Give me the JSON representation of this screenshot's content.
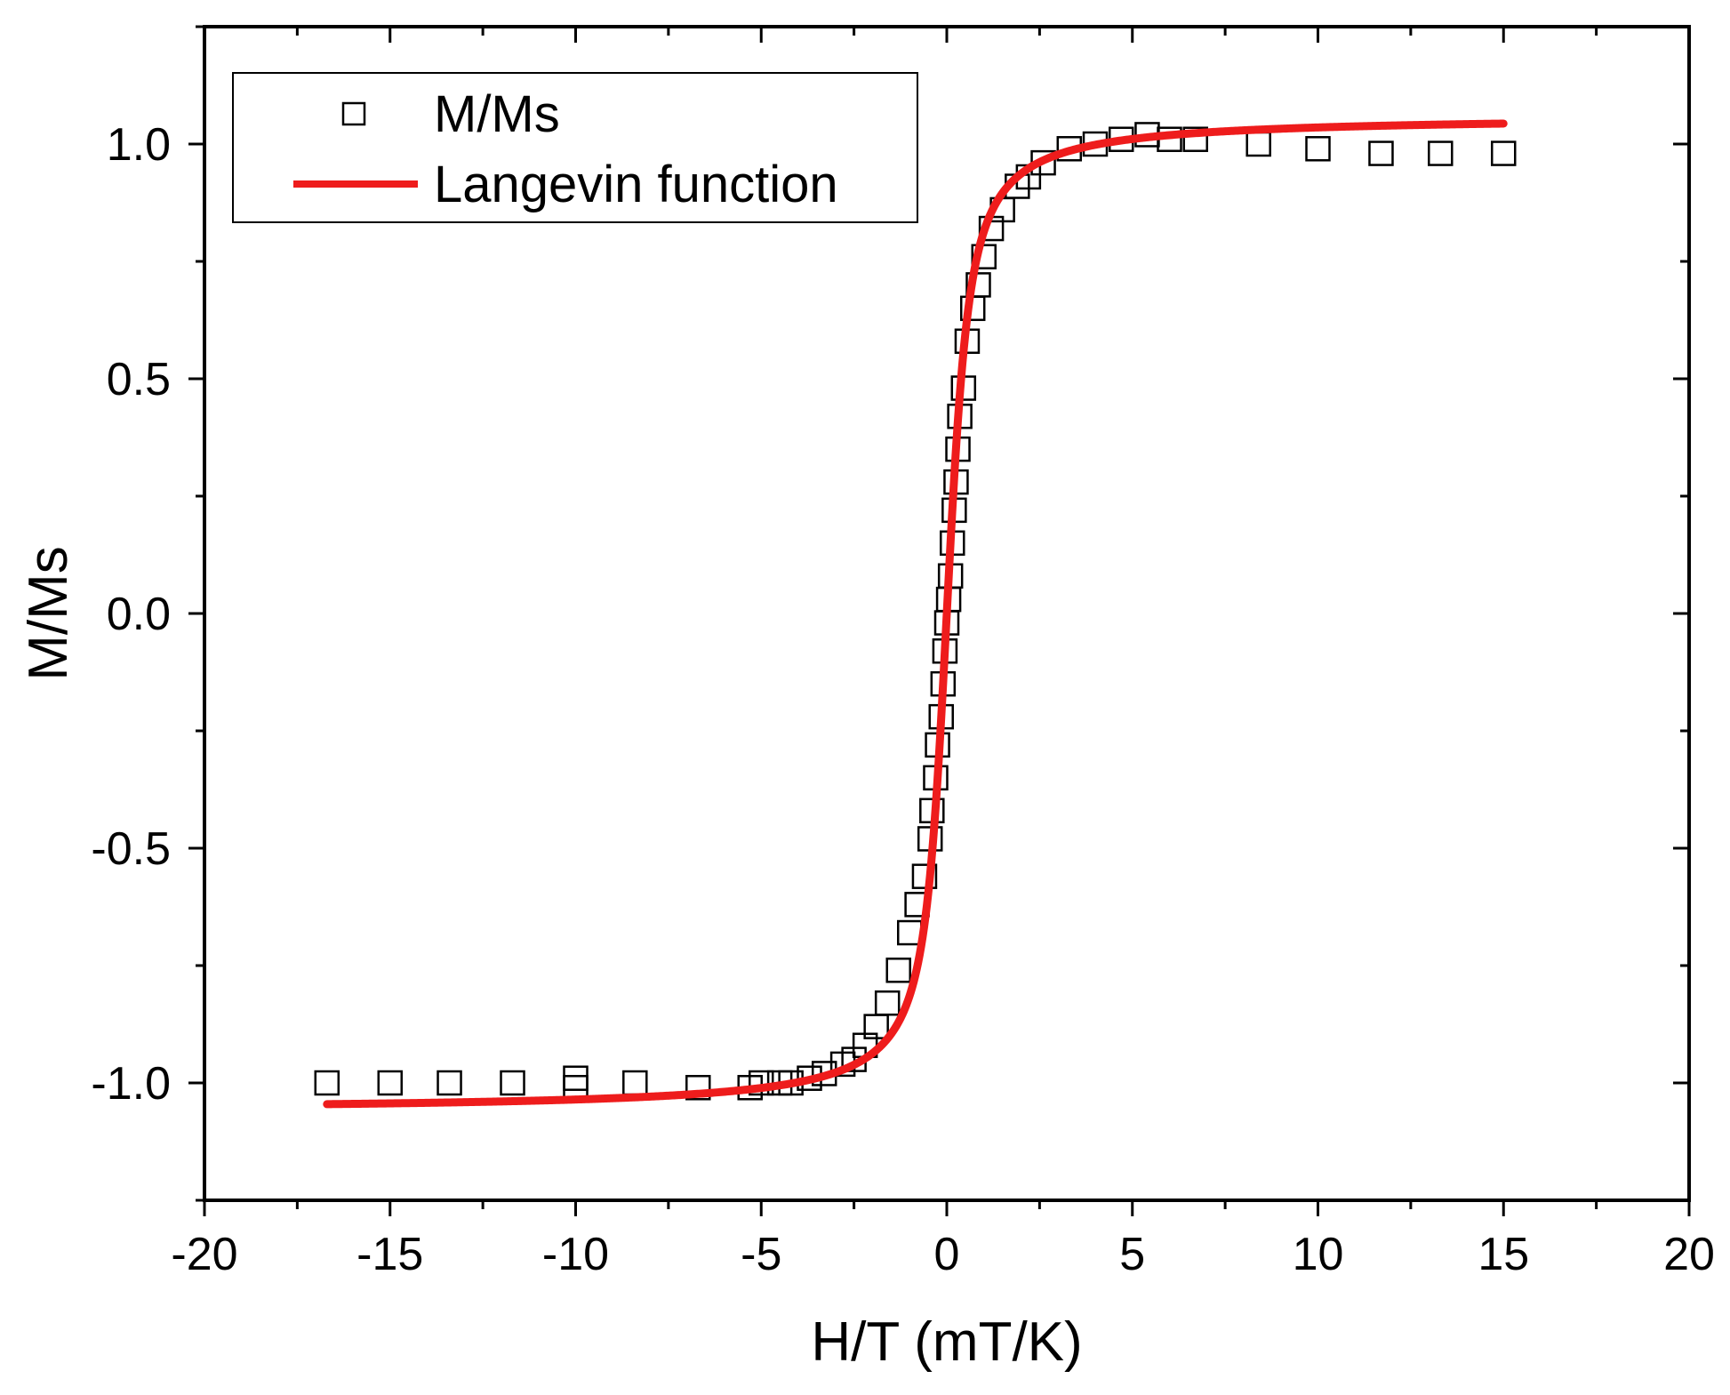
{
  "chart_data": {
    "type": "scatter",
    "title": "",
    "xlabel": "H/T (mT/K)",
    "ylabel": "M/Ms",
    "xlim": [
      -20,
      20
    ],
    "ylim": [
      -1.25,
      1.25
    ],
    "x_ticks": [
      "-20",
      "-15",
      "-10",
      "-5",
      "0",
      "5",
      "10",
      "15",
      "20"
    ],
    "x_tick_values": [
      -20,
      -15,
      -10,
      -5,
      0,
      5,
      10,
      15,
      20
    ],
    "y_ticks": [
      "-1.0",
      "-0.5",
      "0.0",
      "0.5",
      "1.0"
    ],
    "y_tick_values": [
      -1.0,
      -0.5,
      0.0,
      0.5,
      1.0
    ],
    "grid": false,
    "legend_position": "top-left",
    "series": [
      {
        "name": "M/Ms",
        "kind": "scatter",
        "marker": "open-square",
        "color": "#000000",
        "points": [
          [
            -16.7,
            -1.0
          ],
          [
            -15.0,
            -1.0
          ],
          [
            -13.4,
            -1.0
          ],
          [
            -11.7,
            -1.0
          ],
          [
            -10.0,
            -0.99
          ],
          [
            -10.0,
            -1.01
          ],
          [
            -8.4,
            -1.0
          ],
          [
            -6.7,
            -1.01
          ],
          [
            -5.3,
            -1.01
          ],
          [
            -5.0,
            -1.0
          ],
          [
            -4.5,
            -1.0
          ],
          [
            -4.2,
            -1.0
          ],
          [
            -3.7,
            -0.99
          ],
          [
            -3.3,
            -0.98
          ],
          [
            -2.8,
            -0.96
          ],
          [
            -2.5,
            -0.95
          ],
          [
            -2.2,
            -0.92
          ],
          [
            -1.9,
            -0.88
          ],
          [
            -1.6,
            -0.83
          ],
          [
            -1.3,
            -0.76
          ],
          [
            -1.0,
            -0.68
          ],
          [
            -0.8,
            -0.62
          ],
          [
            -0.6,
            -0.56
          ],
          [
            -0.45,
            -0.48
          ],
          [
            -0.4,
            -0.42
          ],
          [
            -0.3,
            -0.35
          ],
          [
            -0.25,
            -0.28
          ],
          [
            -0.15,
            -0.22
          ],
          [
            -0.1,
            -0.15
          ],
          [
            -0.05,
            -0.08
          ],
          [
            0.0,
            -0.02
          ],
          [
            0.05,
            0.03
          ],
          [
            0.1,
            0.08
          ],
          [
            0.15,
            0.15
          ],
          [
            0.2,
            0.22
          ],
          [
            0.25,
            0.28
          ],
          [
            0.3,
            0.35
          ],
          [
            0.35,
            0.42
          ],
          [
            0.45,
            0.48
          ],
          [
            0.55,
            0.58
          ],
          [
            0.7,
            0.65
          ],
          [
            0.85,
            0.7
          ],
          [
            1.0,
            0.76
          ],
          [
            1.2,
            0.82
          ],
          [
            1.5,
            0.86
          ],
          [
            1.9,
            0.91
          ],
          [
            2.2,
            0.93
          ],
          [
            2.6,
            0.96
          ],
          [
            3.3,
            0.99
          ],
          [
            4.0,
            1.0
          ],
          [
            4.7,
            1.01
          ],
          [
            5.4,
            1.02
          ],
          [
            6.0,
            1.01
          ],
          [
            6.7,
            1.01
          ],
          [
            8.4,
            1.0
          ],
          [
            10.0,
            0.99
          ],
          [
            11.7,
            0.98
          ],
          [
            13.3,
            0.98
          ],
          [
            15.0,
            0.98
          ]
        ]
      },
      {
        "name": "Langevin function",
        "kind": "line",
        "color": "#ee1c1c",
        "function": "langevin",
        "x_range": [
          -16.7,
          15.0
        ],
        "scale": 4.3,
        "saturation": 1.06
      }
    ]
  }
}
